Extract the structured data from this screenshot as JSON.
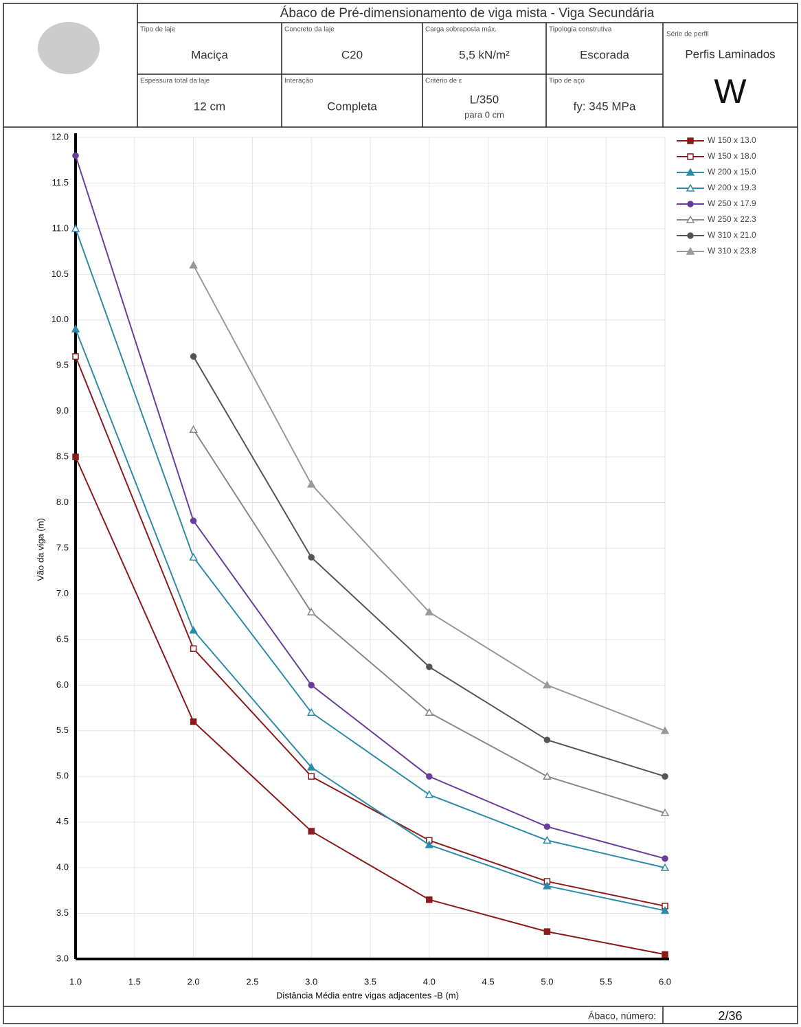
{
  "header": {
    "title": "Ábaco de Pré-dimensionamento de viga mista - Viga Secundária",
    "cells": [
      {
        "label": "Tipo de laje",
        "value": "Maciça"
      },
      {
        "label": "Concreto da laje",
        "value": "C20"
      },
      {
        "label": "Carga sobreposta máx.",
        "value": "5,5 kN/m²"
      },
      {
        "label": "Tipologia construtiva",
        "value": "Escorada"
      },
      {
        "label": "Espessura total da laje",
        "value": "12 cm"
      },
      {
        "label": "Interação",
        "value": "Completa"
      },
      {
        "label": "Critério de ε",
        "value": "L/350",
        "note": "para 0 cm"
      },
      {
        "label": "Tipo de aço",
        "value": "fy: 345 MPa"
      }
    ],
    "series_cell": {
      "label": "Série de perfil",
      "value": "Perfis Laminados",
      "letter": "W"
    }
  },
  "chart_data": {
    "type": "line",
    "x_label": "Distância Média entre vigas adjacentes -B (m)",
    "y_label": "Vão da viga (m)",
    "x": [
      1.0,
      2.0,
      3.0,
      4.0,
      5.0,
      6.0
    ],
    "xlim": [
      1.0,
      6.0
    ],
    "xticks": [
      {
        "value": 1,
        "label": "1.0"
      },
      1.5,
      {
        "value": 2,
        "label": "2.0"
      },
      2.5,
      {
        "value": 3,
        "label": "3.0"
      },
      3.5,
      {
        "value": 4,
        "label": "4.0"
      },
      4.5,
      {
        "value": 5,
        "label": "5.0"
      },
      5.5,
      {
        "value": 6,
        "label": "6.0"
      }
    ],
    "ylim": [
      3.0,
      12.0
    ],
    "yticks": [
      {
        "value": 3,
        "label": "3.0"
      },
      3.5,
      {
        "value": 4,
        "label": "4.0"
      },
      4.5,
      {
        "value": 5,
        "label": "5.0"
      },
      5.5,
      {
        "value": 6,
        "label": "6.0"
      },
      6.5,
      {
        "value": 7,
        "label": "7.0"
      },
      7.5,
      {
        "value": 8,
        "label": "8.0"
      },
      8.5,
      {
        "value": 9,
        "label": "9.0"
      },
      9.5,
      {
        "value": 10,
        "label": "10.0"
      },
      10.5,
      {
        "value": 11,
        "label": "11.0"
      },
      11.5,
      {
        "value": 12,
        "label": "12.0"
      }
    ],
    "grid": true,
    "series": [
      {
        "name": "W 150 x 13.0",
        "color": "#8b1a1a",
        "marker": "square",
        "filled": true,
        "values": [
          8.5,
          5.6,
          4.4,
          3.65,
          3.3,
          3.05
        ]
      },
      {
        "name": "W 150 x 18.0",
        "color": "#8b1a1a",
        "marker": "square",
        "filled": false,
        "values": [
          9.6,
          6.4,
          5.0,
          4.3,
          3.85,
          3.58
        ]
      },
      {
        "name": "W 200 x 15.0",
        "color": "#2e8ba8",
        "marker": "triangle",
        "filled": true,
        "values": [
          9.9,
          6.6,
          5.1,
          4.25,
          3.8,
          3.53
        ]
      },
      {
        "name": "W 200 x 19.3",
        "color": "#2e8ba8",
        "marker": "triangle",
        "filled": false,
        "values": [
          11.0,
          7.4,
          5.7,
          4.8,
          4.3,
          4.0
        ]
      },
      {
        "name": "W 250 x 17.9",
        "color": "#6a3d9a",
        "marker": "circle",
        "filled": true,
        "values": [
          11.8,
          7.8,
          6.0,
          5.0,
          4.45,
          4.1
        ]
      },
      {
        "name": "W 250 x 22.3",
        "color": "#888888",
        "marker": "triangle",
        "filled": false,
        "values": [
          null,
          8.8,
          6.8,
          5.7,
          5.0,
          4.6
        ]
      },
      {
        "name": "W 310 x 21.0",
        "color": "#555555",
        "marker": "circle",
        "filled": true,
        "values": [
          null,
          9.6,
          7.4,
          6.2,
          5.4,
          5.0
        ]
      },
      {
        "name": "W 310 x 23.8",
        "color": "#999999",
        "marker": "triangle",
        "filled": true,
        "values": [
          null,
          10.6,
          8.2,
          6.8,
          6.0,
          5.5
        ]
      }
    ]
  },
  "footer": {
    "label": "Ábaco, número:",
    "value": "2/36"
  }
}
